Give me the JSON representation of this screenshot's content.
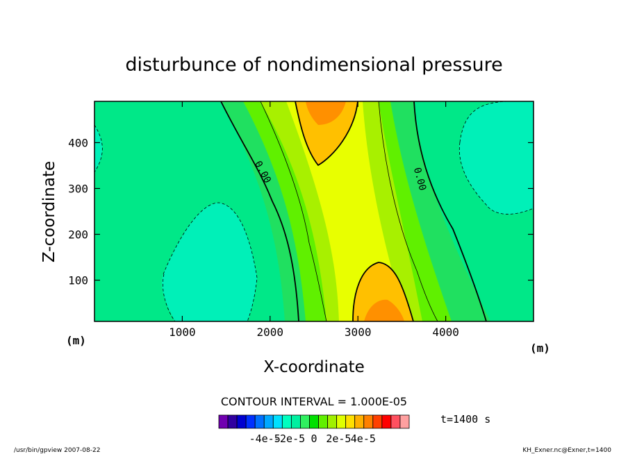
{
  "chart_data": {
    "type": "heatmap",
    "title": "disturbunce of nondimensional pressure",
    "xlabel": "X-coordinate",
    "ylabel": "Z-coordinate",
    "x_unit": "(m)",
    "y_unit": "(m)",
    "xlim": [
      0,
      5000
    ],
    "ylim": [
      10,
      490
    ],
    "x_ticks": [
      1000,
      2000,
      3000,
      4000
    ],
    "y_ticks": [
      100,
      200,
      300,
      400
    ],
    "contour_label": "0.00",
    "contour_interval_text": "CONTOUR INTERVAL = 1.000E-05",
    "time_text": "t=1400 s",
    "colorbar": {
      "tick_labels": [
        "-4e-5",
        "-2e-5",
        "0",
        "2e-5",
        "4e-5"
      ],
      "tick_values": [
        -4e-05,
        -2e-05,
        0,
        2e-05,
        4e-05
      ],
      "levels": [
        -7e-05,
        -6e-05,
        -5e-05,
        -4e-05,
        -3e-05,
        -2e-05,
        -1e-05,
        0,
        1e-05,
        2e-05,
        3e-05,
        4e-05,
        5e-05,
        6e-05,
        7e-05
      ],
      "colors": [
        "#7000b0",
        "#3000a0",
        "#0000d0",
        "#0030ff",
        "#0070ff",
        "#00a8ff",
        "#00e0ff",
        "#00ffc0",
        "#00f0a0",
        "#30f060",
        "#00e000",
        "#60f000",
        "#a0f000",
        "#e0ff00",
        "#ffe000",
        "#ffb000",
        "#ff8000",
        "#ff4000",
        "#ff0000",
        "#ff5060",
        "#ffa0a0"
      ]
    }
  },
  "footer": {
    "left": "/usr/bin/gpview   2007-08-22",
    "right": "KH_Exner.nc@Exner,t=1400"
  }
}
